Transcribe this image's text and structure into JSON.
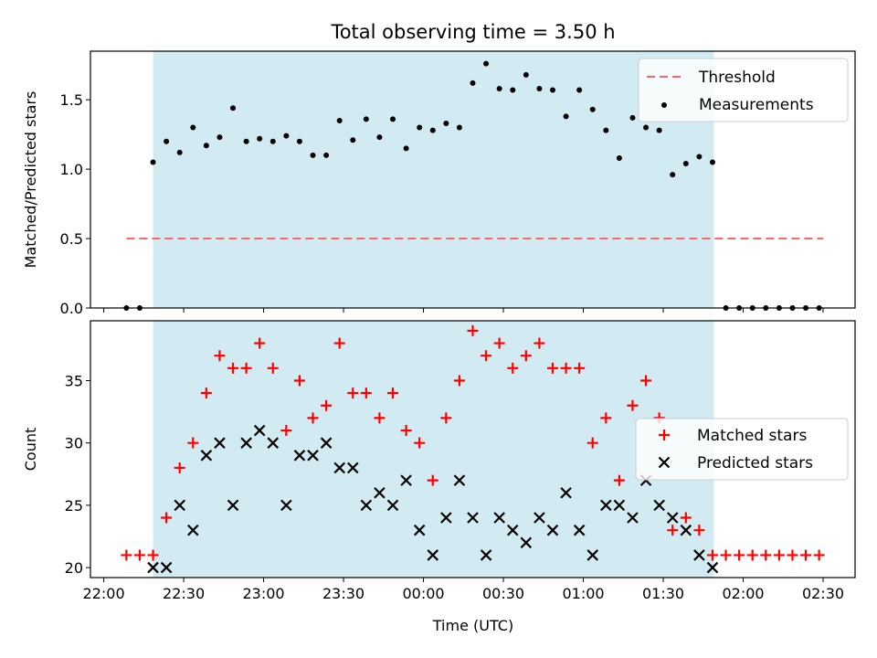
{
  "chart_data": {
    "title": "Total observing time = 3.50 h",
    "xlabel": "Time (UTC)",
    "x_ticks": [
      "22:00",
      "22:30",
      "23:00",
      "23:30",
      "00:00",
      "00:30",
      "01:00",
      "01:30",
      "02:00",
      "02:30"
    ],
    "x_tick_minutes": [
      0,
      30,
      60,
      90,
      120,
      150,
      180,
      210,
      240,
      270
    ],
    "xlim_minutes": [
      -5,
      282
    ],
    "observing_window_minutes": [
      18.5,
      229
    ],
    "colors": {
      "window": "#add8e6",
      "threshold": "#ff6666",
      "measurements": "#000000",
      "matched": "#ff0000",
      "predicted": "#000000"
    },
    "panels": [
      {
        "type": "scatter",
        "ylabel": "Matched/Predicted stars",
        "ylim": [
          0,
          1.85
        ],
        "y_ticks": [
          "0.0",
          "0.5",
          "1.0",
          "1.5"
        ],
        "y_tick_values": [
          0,
          0.5,
          1.0,
          1.5
        ],
        "threshold": {
          "name": "Threshold",
          "value": 0.5,
          "x_range_minutes": [
            8.5,
            270
          ]
        },
        "series": [
          {
            "name": "Measurements",
            "x_minutes": [
              8.5,
              13.5,
              18.5,
              23.5,
              28.5,
              33.5,
              38.5,
              43.5,
              48.5,
              53.5,
              58.5,
              63.5,
              68.5,
              73.5,
              78.5,
              83.5,
              88.5,
              93.5,
              98.5,
              103.5,
              108.5,
              113.5,
              118.5,
              123.5,
              128.5,
              133.5,
              138.5,
              143.5,
              148.5,
              153.5,
              158.5,
              163.5,
              168.5,
              173.5,
              178.5,
              183.5,
              188.5,
              193.5,
              198.5,
              203.5,
              208.5,
              213.5,
              218.5,
              223.5,
              228.5,
              233.5,
              238.5,
              243.5,
              248.5,
              253.5,
              258.5,
              263.5,
              268.5
            ],
            "values": [
              0,
              0,
              1.05,
              1.2,
              1.12,
              1.3,
              1.17,
              1.23,
              1.44,
              1.2,
              1.22,
              1.2,
              1.24,
              1.2,
              1.1,
              1.1,
              1.35,
              1.21,
              1.36,
              1.23,
              1.36,
              1.15,
              1.3,
              1.28,
              1.33,
              1.3,
              1.62,
              1.76,
              1.58,
              1.57,
              1.68,
              1.58,
              1.57,
              1.38,
              1.57,
              1.43,
              1.28,
              1.08,
              1.37,
              1.3,
              1.28,
              0.96,
              1.04,
              1.09,
              1.05,
              0,
              0,
              0,
              0,
              0,
              0,
              0,
              0
            ]
          }
        ],
        "legend": {
          "position": "upper right",
          "entries": [
            "Threshold",
            "Measurements"
          ]
        }
      },
      {
        "type": "scatter",
        "ylabel": "Count",
        "ylim": [
          19.2,
          39.8
        ],
        "y_ticks": [
          "20",
          "25",
          "30",
          "35"
        ],
        "y_tick_values": [
          20,
          25,
          30,
          35
        ],
        "series": [
          {
            "name": "Matched stars",
            "marker": "plus",
            "x_minutes": [
              8.5,
              13.5,
              18.5,
              23.5,
              28.5,
              33.5,
              38.5,
              43.5,
              48.5,
              53.5,
              58.5,
              63.5,
              68.5,
              73.5,
              78.5,
              83.5,
              88.5,
              93.5,
              98.5,
              103.5,
              108.5,
              113.5,
              118.5,
              123.5,
              128.5,
              133.5,
              138.5,
              143.5,
              148.5,
              153.5,
              158.5,
              163.5,
              168.5,
              173.5,
              178.5,
              183.5,
              188.5,
              193.5,
              198.5,
              203.5,
              208.5,
              213.5,
              218.5,
              223.5,
              228.5,
              233.5,
              238.5,
              243.5,
              248.5,
              253.5,
              258.5,
              263.5,
              268.5
            ],
            "values": [
              21,
              21,
              21,
              24,
              28,
              30,
              34,
              37,
              36,
              36,
              38,
              36,
              31,
              35,
              32,
              33,
              38,
              34,
              34,
              32,
              34,
              31,
              30,
              27,
              32,
              35,
              39,
              37,
              38,
              36,
              37,
              38,
              36,
              36,
              36,
              30,
              32,
              27,
              33,
              35,
              32,
              23,
              24,
              23,
              21,
              21,
              21,
              21,
              21,
              21,
              21,
              21,
              21
            ]
          },
          {
            "name": "Predicted stars",
            "marker": "x",
            "x_minutes": [
              18.5,
              23.5,
              28.5,
              33.5,
              38.5,
              43.5,
              48.5,
              53.5,
              58.5,
              63.5,
              68.5,
              73.5,
              78.5,
              83.5,
              88.5,
              93.5,
              98.5,
              103.5,
              108.5,
              113.5,
              118.5,
              123.5,
              128.5,
              133.5,
              138.5,
              143.5,
              148.5,
              153.5,
              158.5,
              163.5,
              168.5,
              173.5,
              178.5,
              183.5,
              188.5,
              193.5,
              198.5,
              203.5,
              208.5,
              213.5,
              218.5,
              223.5,
              228.5
            ],
            "values": [
              20,
              20,
              25,
              23,
              29,
              30,
              25,
              30,
              31,
              30,
              25,
              29,
              29,
              30,
              28,
              28,
              25,
              26,
              25,
              27,
              23,
              21,
              24,
              27,
              24,
              21,
              24,
              23,
              22,
              24,
              23,
              26,
              23,
              21,
              25,
              25,
              24,
              27,
              25,
              24,
              23,
              21,
              20
            ]
          }
        ],
        "legend": {
          "position": "center right",
          "entries": [
            "Matched stars",
            "Predicted stars"
          ]
        }
      }
    ]
  }
}
